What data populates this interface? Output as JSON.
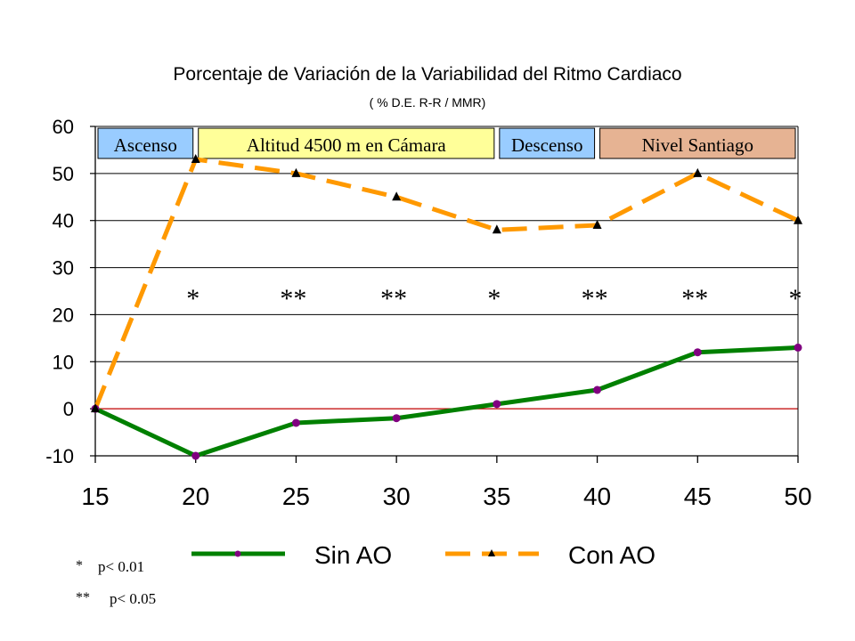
{
  "chart_data": {
    "type": "line",
    "title": "Porcentaje de Variación de la Variabilidad del Ritmo Cardiaco",
    "subtitle": "( % D.E. R-R / MMR)",
    "x": [
      15,
      20,
      25,
      30,
      35,
      40,
      45,
      50
    ],
    "xlim": [
      15,
      50
    ],
    "ylim": [
      -10,
      60
    ],
    "yticks": [
      -10,
      0,
      10,
      20,
      30,
      40,
      50,
      60
    ],
    "grid": true,
    "legend_position": "bottom",
    "series": [
      {
        "name": "Sin AO",
        "values": [
          0,
          -10,
          -3,
          -2,
          1,
          4,
          12,
          13
        ],
        "color": "#008000",
        "marker_color": "#800080",
        "style": "solid"
      },
      {
        "name": "Con AO",
        "values": [
          0,
          53,
          50,
          45,
          38,
          39,
          50,
          40
        ],
        "color": "#ff9900",
        "marker_color": "#000000",
        "style": "dashed"
      }
    ],
    "zero_line_color": "#c00000",
    "phases": [
      {
        "label": "Ascenso",
        "x_start": 15,
        "x_end": 20,
        "color": "#99ccff"
      },
      {
        "label": "Altitud 4500 m en Cámara",
        "x_start": 20,
        "x_end": 35,
        "color": "#ffff99"
      },
      {
        "label": "Descenso",
        "x_start": 35,
        "x_end": 40,
        "color": "#99ccff"
      },
      {
        "label": "Nivel Santiago",
        "x_start": 40,
        "x_end": 50,
        "color": "#e6b393"
      }
    ],
    "significance": [
      {
        "x": 20,
        "label": "*"
      },
      {
        "x": 25,
        "label": "**"
      },
      {
        "x": 30,
        "label": "**"
      },
      {
        "x": 35,
        "label": "*"
      },
      {
        "x": 40,
        "label": "**"
      },
      {
        "x": 45,
        "label": "**"
      },
      {
        "x": 50,
        "label": "*"
      }
    ],
    "footnotes": [
      {
        "symbol": "*",
        "text": "p< 0.01"
      },
      {
        "symbol": "**",
        "text": "p< 0.05"
      }
    ]
  }
}
